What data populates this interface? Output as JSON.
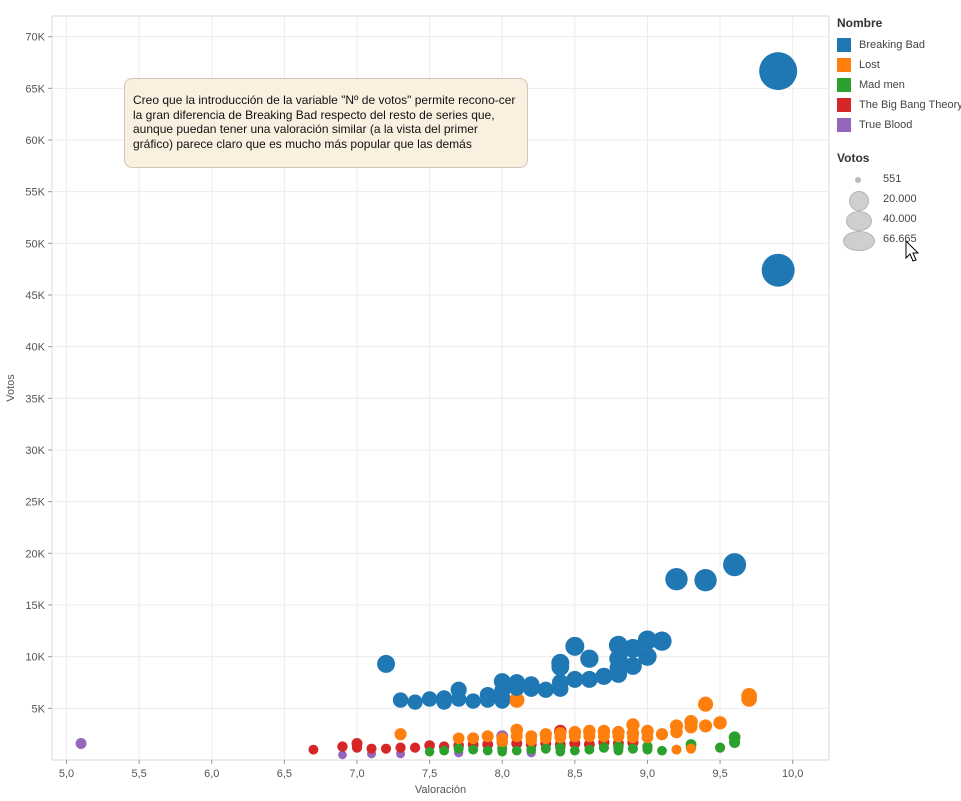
{
  "chart_data": {
    "type": "scatter",
    "xlabel": "Valoración",
    "ylabel": "Votos",
    "xlim": [
      4.9,
      10.25
    ],
    "ylim": [
      0,
      72000
    ],
    "xticks": [
      "5,0",
      "5,5",
      "6,0",
      "6,5",
      "7,0",
      "7,5",
      "8,0",
      "8,5",
      "9,0",
      "9,5",
      "10,0"
    ],
    "xtick_values": [
      5.0,
      5.5,
      6.0,
      6.5,
      7.0,
      7.5,
      8.0,
      8.5,
      9.0,
      9.5,
      10.0
    ],
    "yticks": [
      "5K",
      "10K",
      "15K",
      "20K",
      "25K",
      "30K",
      "35K",
      "40K",
      "45K",
      "50K",
      "55K",
      "60K",
      "65K",
      "70K"
    ],
    "ytick_values": [
      5000,
      10000,
      15000,
      20000,
      25000,
      30000,
      35000,
      40000,
      45000,
      50000,
      55000,
      60000,
      65000,
      70000
    ],
    "grid": true,
    "legend_position": "right",
    "series": [
      {
        "name": "Breaking Bad",
        "color": "#1f77b4",
        "points": [
          [
            9.9,
            66665
          ],
          [
            9.9,
            47400
          ],
          [
            9.6,
            18900
          ],
          [
            9.4,
            17400
          ],
          [
            9.2,
            17500
          ],
          [
            9.1,
            11500
          ],
          [
            9.0,
            11600
          ],
          [
            9.0,
            10000
          ],
          [
            8.9,
            10800
          ],
          [
            8.9,
            9100
          ],
          [
            8.8,
            11100
          ],
          [
            8.8,
            9800
          ],
          [
            8.8,
            8900
          ],
          [
            8.8,
            8300
          ],
          [
            8.7,
            8100
          ],
          [
            8.6,
            9800
          ],
          [
            8.6,
            7800
          ],
          [
            8.5,
            11000
          ],
          [
            8.5,
            7800
          ],
          [
            8.4,
            9400
          ],
          [
            8.4,
            9000
          ],
          [
            8.4,
            7500
          ],
          [
            8.4,
            6900
          ],
          [
            8.3,
            6800
          ],
          [
            8.2,
            7300
          ],
          [
            8.2,
            6900
          ],
          [
            8.1,
            7500
          ],
          [
            8.1,
            7000
          ],
          [
            8.0,
            7600
          ],
          [
            8.0,
            6700
          ],
          [
            8.0,
            6100
          ],
          [
            8.0,
            5700
          ],
          [
            7.9,
            6300
          ],
          [
            7.9,
            5800
          ],
          [
            7.8,
            5700
          ],
          [
            7.7,
            6800
          ],
          [
            7.7,
            5900
          ],
          [
            7.6,
            6000
          ],
          [
            7.6,
            5600
          ],
          [
            7.5,
            5900
          ],
          [
            7.4,
            5600
          ],
          [
            7.3,
            5800
          ],
          [
            7.2,
            9300
          ]
        ]
      },
      {
        "name": "Lost",
        "color": "#ff7f0e",
        "points": [
          [
            9.7,
            6200
          ],
          [
            9.7,
            5900
          ],
          [
            9.4,
            5400
          ],
          [
            9.5,
            3600
          ],
          [
            9.4,
            3300
          ],
          [
            9.3,
            3700
          ],
          [
            9.3,
            3200
          ],
          [
            9.2,
            3300
          ],
          [
            9.2,
            2700
          ],
          [
            9.1,
            2500
          ],
          [
            9.0,
            2800
          ],
          [
            9.0,
            2200
          ],
          [
            8.9,
            3400
          ],
          [
            8.9,
            2600
          ],
          [
            8.9,
            2200
          ],
          [
            8.8,
            2700
          ],
          [
            8.8,
            2300
          ],
          [
            8.7,
            2800
          ],
          [
            8.7,
            2300
          ],
          [
            8.6,
            2800
          ],
          [
            8.6,
            2300
          ],
          [
            8.5,
            2700
          ],
          [
            8.5,
            2300
          ],
          [
            8.4,
            2600
          ],
          [
            8.4,
            2200
          ],
          [
            8.3,
            2500
          ],
          [
            8.3,
            2100
          ],
          [
            8.2,
            2300
          ],
          [
            8.2,
            1900
          ],
          [
            8.1,
            5800
          ],
          [
            8.1,
            2900
          ],
          [
            8.1,
            2300
          ],
          [
            8.0,
            2100
          ],
          [
            8.0,
            1800
          ],
          [
            7.9,
            2300
          ],
          [
            7.8,
            2100
          ],
          [
            7.7,
            2100
          ],
          [
            7.3,
            2500
          ],
          [
            9.3,
            1100
          ],
          [
            9.2,
            1000
          ]
        ]
      },
      {
        "name": "Mad men",
        "color": "#2ca02c",
        "points": [
          [
            9.6,
            2200
          ],
          [
            9.6,
            1700
          ],
          [
            9.5,
            1200
          ],
          [
            9.3,
            1500
          ],
          [
            9.3,
            1200
          ],
          [
            9.2,
            1000
          ],
          [
            9.1,
            900
          ],
          [
            9.0,
            1300
          ],
          [
            9.0,
            1000
          ],
          [
            8.9,
            1100
          ],
          [
            8.8,
            1300
          ],
          [
            8.8,
            900
          ],
          [
            8.7,
            1200
          ],
          [
            8.6,
            1000
          ],
          [
            8.5,
            900
          ],
          [
            8.4,
            1200
          ],
          [
            8.4,
            800
          ],
          [
            8.3,
            1100
          ],
          [
            8.2,
            1000
          ],
          [
            8.1,
            900
          ],
          [
            8.0,
            1100
          ],
          [
            8.0,
            800
          ],
          [
            7.9,
            900
          ],
          [
            7.8,
            1000
          ],
          [
            7.7,
            1100
          ],
          [
            7.6,
            900
          ],
          [
            7.5,
            800
          ]
        ]
      },
      {
        "name": "The Big Bang Theory",
        "color": "#d62728",
        "points": [
          [
            8.9,
            1700
          ],
          [
            8.8,
            1600
          ],
          [
            8.7,
            1700
          ],
          [
            8.6,
            1500
          ],
          [
            8.5,
            1600
          ],
          [
            8.4,
            2800
          ],
          [
            8.4,
            1500
          ],
          [
            8.3,
            1600
          ],
          [
            8.2,
            1500
          ],
          [
            8.1,
            1600
          ],
          [
            8.0,
            1700
          ],
          [
            7.9,
            1500
          ],
          [
            7.8,
            2100
          ],
          [
            7.8,
            1500
          ],
          [
            7.7,
            1400
          ],
          [
            7.6,
            1300
          ],
          [
            7.5,
            1400
          ],
          [
            7.4,
            1200
          ],
          [
            7.3,
            1200
          ],
          [
            7.2,
            1100
          ],
          [
            7.1,
            1100
          ],
          [
            7.0,
            1600
          ],
          [
            7.0,
            1200
          ],
          [
            6.9,
            1300
          ],
          [
            6.7,
            1000
          ]
        ]
      },
      {
        "name": "True Blood",
        "color": "#9467bd",
        "points": [
          [
            5.1,
            1600
          ],
          [
            8.0,
            2300
          ],
          [
            8.4,
            1300
          ],
          [
            8.8,
            1100
          ],
          [
            7.7,
            700
          ],
          [
            7.1,
            600
          ],
          [
            6.9,
            500
          ],
          [
            7.3,
            600
          ],
          [
            8.2,
            700
          ]
        ]
      }
    ],
    "size_legend_title": "Votos",
    "size_legend": [
      "551",
      "20.000",
      "40.000",
      "66.665"
    ],
    "size_legend_values": [
      551,
      20000,
      40000,
      66665
    ]
  },
  "annotation": {
    "text": "Creo que la introducción de la variable \"Nº de votos\" permite recono-cer la gran diferencia de Breaking Bad respecto del resto de series que, aunque puedan tener una valoración similar (a la vista del primer gráfico) parece claro que es mucho más popular que las demás"
  },
  "legend": {
    "title": "Nombre",
    "items": [
      {
        "label": "Breaking Bad",
        "color": "#1f77b4"
      },
      {
        "label": "Lost",
        "color": "#ff7f0e"
      },
      {
        "label": "Mad men",
        "color": "#2ca02c"
      },
      {
        "label": "The Big Bang Theory",
        "color": "#d62728"
      },
      {
        "label": "True Blood",
        "color": "#9467bd"
      }
    ]
  },
  "cursor_icon": "mouse-pointer-icon"
}
